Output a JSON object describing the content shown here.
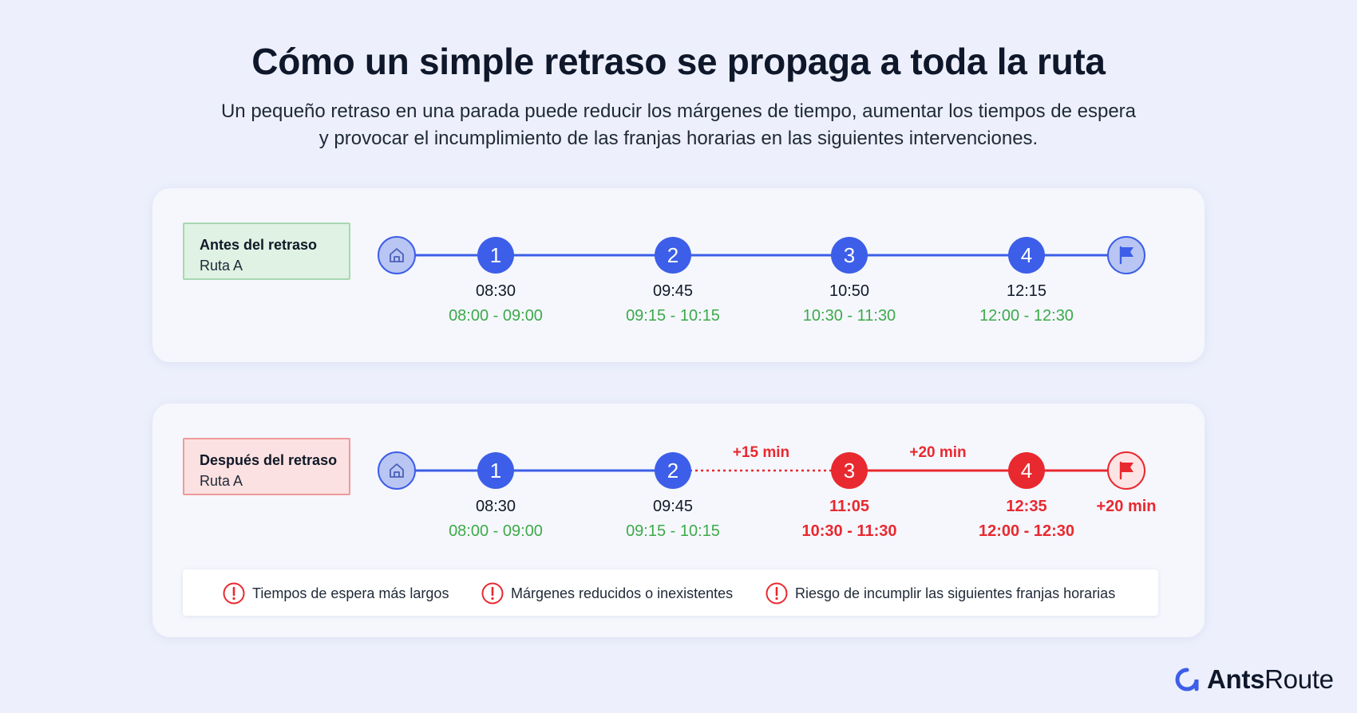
{
  "header": {
    "title": "Cómo un simple retraso se propaga a toda la ruta",
    "subtitle_line1": "Un pequeño retraso en una parada puede reducir los márgenes de tiempo, aumentar los tiempos de espera",
    "subtitle_line2": "y provocar el incumplimiento de las franjas horarias en las siguientes intervenciones."
  },
  "colors": {
    "blue": "#3d5ee8",
    "red": "#e8292f",
    "green": "#3daa4a",
    "light_blue": "#b9c6f3"
  },
  "before": {
    "label_title": "Antes del retraso",
    "label_route": "Ruta A",
    "start_icon": "home-icon",
    "end_icon": "flag-icon",
    "stops": [
      {
        "number": "1",
        "time": "08:30",
        "window": "08:00 - 09:00",
        "late": false
      },
      {
        "number": "2",
        "time": "09:45",
        "window": "09:15 - 10:15",
        "late": false
      },
      {
        "number": "3",
        "time": "10:50",
        "window": "10:30 - 11:30",
        "late": false
      },
      {
        "number": "4",
        "time": "12:15",
        "window": "12:00 - 12:30",
        "late": false
      }
    ],
    "segment_labels": [],
    "end_delay": ""
  },
  "after": {
    "label_title": "Después del retraso",
    "label_route": "Ruta A",
    "start_icon": "home-icon",
    "end_icon": "flag-icon",
    "stops": [
      {
        "number": "1",
        "time": "08:30",
        "window": "08:00 - 09:00",
        "late": false
      },
      {
        "number": "2",
        "time": "09:45",
        "window": "09:15 - 10:15",
        "late": false
      },
      {
        "number": "3",
        "time": "11:05",
        "window": "10:30 - 11:30",
        "late": true
      },
      {
        "number": "4",
        "time": "12:35",
        "window": "12:00 - 12:30",
        "late": true
      }
    ],
    "segment_labels": [
      {
        "between": [
          2,
          3
        ],
        "text": "+15 min",
        "style": "dotted"
      },
      {
        "between": [
          3,
          4
        ],
        "text": "+20 min",
        "style": "solid"
      }
    ],
    "end_delay": "+20 min"
  },
  "legend": [
    {
      "icon": "alert-icon",
      "text": "Tiempos de espera más largos"
    },
    {
      "icon": "alert-icon",
      "text": "Márgenes reducidos o inexistentes"
    },
    {
      "icon": "alert-icon",
      "text": "Riesgo de incumplir las siguientes franjas horarias"
    }
  ],
  "brand": {
    "name_bold": "Ants",
    "name_regular": "Route",
    "logo": "antsroute-logo-icon"
  }
}
